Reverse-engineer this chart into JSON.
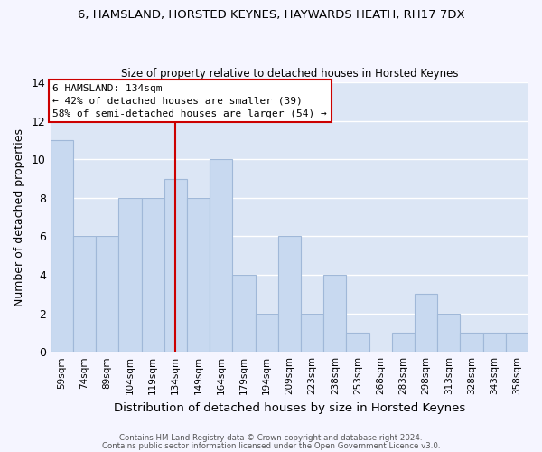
{
  "title_line1": "6, HAMSLAND, HORSTED KEYNES, HAYWARDS HEATH, RH17 7DX",
  "title_line2": "Size of property relative to detached houses in Horsted Keynes",
  "xlabel": "Distribution of detached houses by size in Horsted Keynes",
  "ylabel": "Number of detached properties",
  "bar_labels": [
    "59sqm",
    "74sqm",
    "89sqm",
    "104sqm",
    "119sqm",
    "134sqm",
    "149sqm",
    "164sqm",
    "179sqm",
    "194sqm",
    "209sqm",
    "223sqm",
    "238sqm",
    "253sqm",
    "268sqm",
    "283sqm",
    "298sqm",
    "313sqm",
    "328sqm",
    "343sqm",
    "358sqm"
  ],
  "bar_values": [
    11,
    6,
    6,
    8,
    8,
    9,
    8,
    10,
    4,
    2,
    6,
    2,
    4,
    1,
    0,
    1,
    3,
    2,
    1,
    1,
    1
  ],
  "bar_color": "#c8d9f0",
  "bar_edge_color": "#a0b8d8",
  "reference_line_x_label": "134sqm",
  "reference_line_color": "#cc0000",
  "annotation_title": "6 HAMSLAND: 134sqm",
  "annotation_line1": "← 42% of detached houses are smaller (39)",
  "annotation_line2": "58% of semi-detached houses are larger (54) →",
  "annotation_box_color": "#ffffff",
  "annotation_box_edge_color": "#cc0000",
  "ylim": [
    0,
    14
  ],
  "yticks": [
    0,
    2,
    4,
    6,
    8,
    10,
    12,
    14
  ],
  "grid_color": "#ffffff",
  "bg_color": "#dce6f5",
  "fig_bg_color": "#f5f5ff",
  "footnote_line1": "Contains HM Land Registry data © Crown copyright and database right 2024.",
  "footnote_line2": "Contains public sector information licensed under the Open Government Licence v3.0."
}
